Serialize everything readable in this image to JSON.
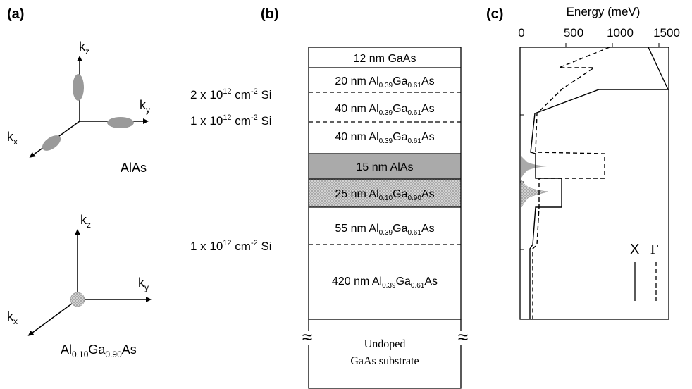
{
  "panels": {
    "a": {
      "label": "(a)",
      "top": {
        "axes": {
          "z": "k",
          "z_sub": "z",
          "y": "k",
          "y_sub": "y",
          "x": "k",
          "x_sub": "x"
        },
        "material": "AlAs"
      },
      "bottom": {
        "axes": {
          "z": "k",
          "z_sub": "z",
          "y": "k",
          "y_sub": "y",
          "x": "k",
          "x_sub": "x"
        },
        "material": {
          "p1": "Al",
          "s1": "0.10",
          "p2": "Ga",
          "s2": "0.90",
          "p3": "As"
        }
      }
    },
    "b": {
      "label": "(b)",
      "layers": [
        {
          "text": "12 nm GaAs"
        },
        {
          "pre": "20 nm Al",
          "s1": "0.39",
          "mid": "Ga",
          "s2": "0.61",
          "post": "As"
        },
        {
          "pre": "40 nm Al",
          "s1": "0.39",
          "mid": "Ga",
          "s2": "0.61",
          "post": "As"
        },
        {
          "pre": "40 nm Al",
          "s1": "0.39",
          "mid": "Ga",
          "s2": "0.61",
          "post": "As"
        },
        {
          "text": "15 nm AlAs"
        },
        {
          "pre": "25 nm Al",
          "s1": "0.10",
          "mid": "Ga",
          "s2": "0.90",
          "post": "As"
        },
        {
          "pre": "55 nm Al",
          "s1": "0.39",
          "mid": "Ga",
          "s2": "0.61",
          "post": "As"
        },
        {
          "pre": "420 nm Al",
          "s1": "0.39",
          "mid": "Ga",
          "s2": "0.61",
          "post": "As"
        }
      ],
      "substrate": {
        "line1": "Undoped",
        "line2": "GaAs substrate"
      },
      "doping": [
        {
          "pre": "2 x 10",
          "exp": "12",
          "mid": " cm",
          "exp2": "-2",
          "post": " Si"
        },
        {
          "pre": "1 x 10",
          "exp": "12",
          "mid": " cm",
          "exp2": "-2",
          "post": " Si"
        },
        {
          "pre": "1 x 10",
          "exp": "12",
          "mid": " cm",
          "exp2": "-2",
          "post": " Si"
        }
      ]
    },
    "c": {
      "label": "(c)",
      "axis_title": "Energy (meV)",
      "ticks": [
        "0",
        "500",
        "1000",
        "1500"
      ],
      "legend": {
        "x": "X",
        "gamma": "Γ"
      }
    }
  }
}
